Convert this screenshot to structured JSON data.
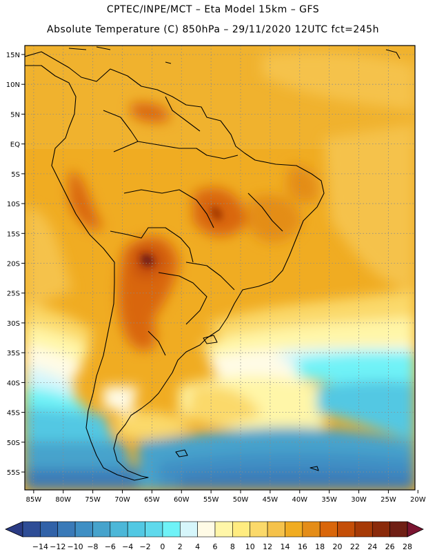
{
  "header": {
    "line1": "CPTEC/INPE/MCT –  Eta Model 15km – GFS",
    "line2": "Absolute Temperature (C) 850hPa – 29/11/2020 12UTC fct=245h"
  },
  "map": {
    "lat_ticks": [
      "15N",
      "10N",
      "5N",
      "EQ",
      "5S",
      "10S",
      "15S",
      "20S",
      "25S",
      "30S",
      "35S",
      "40S",
      "45S",
      "50S",
      "55S"
    ],
    "lon_ticks": [
      "85W",
      "80W",
      "75W",
      "70W",
      "65W",
      "60W",
      "55W",
      "50W",
      "45W",
      "40W",
      "35W",
      "30W",
      "25W",
      "20W"
    ],
    "lat_range": [
      -58,
      16.5
    ],
    "lon_range": [
      -86.5,
      -20.5
    ],
    "grid": "dotted"
  },
  "colorbar": {
    "labels": [
      "-14",
      "-12",
      "-10",
      "-8",
      "-6",
      "-4",
      "-2",
      "0",
      "2",
      "4",
      "6",
      "8",
      "10",
      "12",
      "14",
      "16",
      "18",
      "20",
      "22",
      "24",
      "26",
      "28"
    ],
    "colors": [
      "#2e4d96",
      "#3162a8",
      "#3a7ab8",
      "#3f8fc4",
      "#46a3cc",
      "#4cb7d8",
      "#52c8e3",
      "#5fd9ec",
      "#6ff2f7",
      "#d6f6fb",
      "#fffbe6",
      "#fff6a8",
      "#ffec80",
      "#fbd96a",
      "#f5c24b",
      "#f0ac22",
      "#e48d18",
      "#d9660a",
      "#c44e07",
      "#a63a06",
      "#8a2a0a",
      "#6f1f14"
    ],
    "under_color": "#2a3b84",
    "over_color": "#7a1430"
  }
}
